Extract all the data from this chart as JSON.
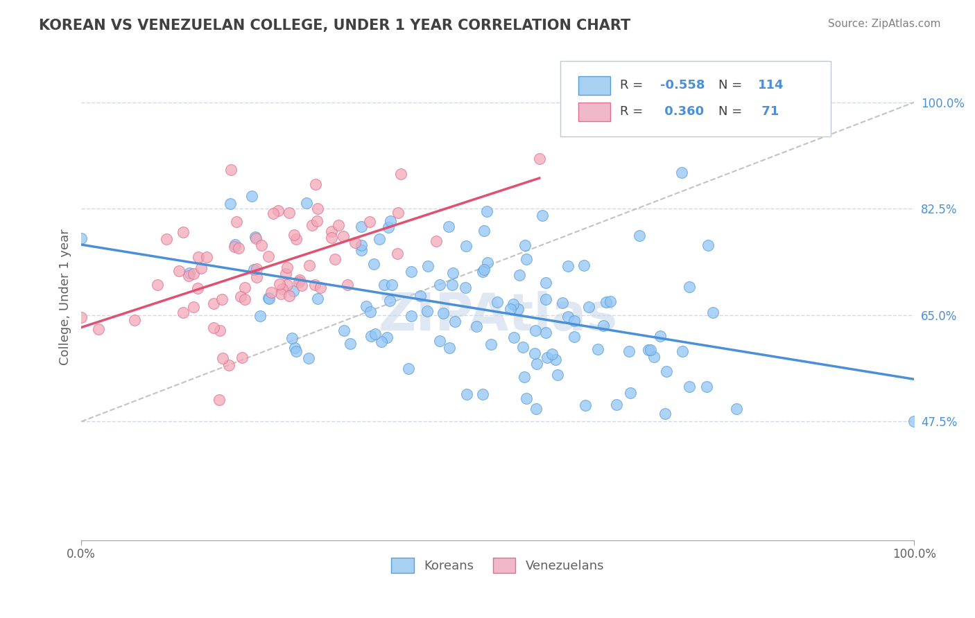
{
  "title": "KOREAN VS VENEZUELAN COLLEGE, UNDER 1 YEAR CORRELATION CHART",
  "source": "Source: ZipAtlas.com",
  "ylabel": "College, Under 1 year",
  "xlim": [
    0.0,
    1.0
  ],
  "ylim": [
    0.28,
    1.08
  ],
  "ytick_vals": [
    0.475,
    0.65,
    0.825,
    1.0
  ],
  "korean_color": "#92c5f7",
  "venezuelan_color": "#f4a8b8",
  "korean_edge": "#5a9fd4",
  "venezuelan_edge": "#e07090",
  "korean_R": -0.558,
  "korean_N": 114,
  "venezuelan_R": 0.36,
  "venezuelan_N": 71,
  "korean_line_color": "#4a90d9",
  "venezuelan_line_color": "#e05070",
  "ref_line_color": "#b8b8b8",
  "watermark": "ZIPAtlas",
  "watermark_color": "#c8d8ea",
  "background_color": "#ffffff",
  "grid_color": "#d0d8e8",
  "title_color": "#404040",
  "source_color": "#808080",
  "axis_label_color": "#606060",
  "tick_color_right": "#4a90d9",
  "legend_box_color_korean": "#a8d0f0",
  "legend_box_color_venezuelan": "#f0b8c8"
}
